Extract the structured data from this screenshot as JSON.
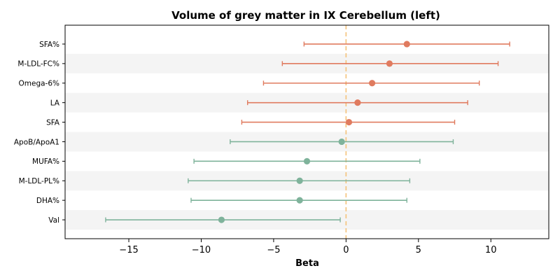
{
  "chart_data": {
    "type": "forest",
    "title": "Volume of grey matter in IX Cerebellum (left)",
    "xlabel": "Beta",
    "ylabel": "",
    "xlim": [
      -19.4,
      14.0
    ],
    "xticks": [
      -15,
      -10,
      -5,
      0,
      5,
      10
    ],
    "xtick_labels": [
      "−15",
      "−10",
      "−5",
      "0",
      "5",
      "10"
    ],
    "reference_line": 0,
    "reference_line_color": "#f5c27a",
    "positive_color": "#e07b5f",
    "negative_color": "#7fb39b",
    "stripe_color": "#f4f4f4",
    "grid": false,
    "rows": [
      {
        "label": "SFA%",
        "beta": 4.2,
        "ci_low": -2.9,
        "ci_high": 11.3
      },
      {
        "label": "M-LDL-FC%",
        "beta": 3.0,
        "ci_low": -4.4,
        "ci_high": 10.5
      },
      {
        "label": "Omega-6%",
        "beta": 1.8,
        "ci_low": -5.7,
        "ci_high": 9.2
      },
      {
        "label": "LA",
        "beta": 0.8,
        "ci_low": -6.8,
        "ci_high": 8.4
      },
      {
        "label": "SFA",
        "beta": 0.2,
        "ci_low": -7.2,
        "ci_high": 7.5
      },
      {
        "label": "ApoB/ApoA1",
        "beta": -0.3,
        "ci_low": -8.0,
        "ci_high": 7.4
      },
      {
        "label": "MUFA%",
        "beta": -2.7,
        "ci_low": -10.5,
        "ci_high": 5.1
      },
      {
        "label": "M-LDL-PL%",
        "beta": -3.2,
        "ci_low": -10.9,
        "ci_high": 4.4
      },
      {
        "label": "DHA%",
        "beta": -3.2,
        "ci_low": -10.7,
        "ci_high": 4.2
      },
      {
        "label": "Val",
        "beta": -8.6,
        "ci_low": -16.6,
        "ci_high": -0.4
      }
    ]
  }
}
